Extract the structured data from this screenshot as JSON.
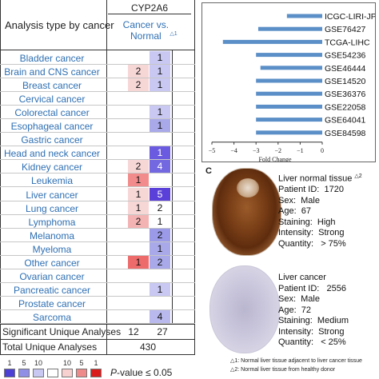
{
  "table": {
    "header_title": "Analysis type by cancer",
    "gene": "CYP2A6",
    "column_header": "Cancer vs. Normal",
    "column_header_mark": "△1",
    "rows": [
      {
        "label": "Bladder cancer",
        "up": "",
        "up_color": "",
        "down": "1",
        "down_color": "#c8c8f2"
      },
      {
        "label": "Brain and CNS cancer",
        "up": "2",
        "up_color": "#f7d6d6",
        "down": "1",
        "down_color": "#c8c8f2"
      },
      {
        "label": "Breast cancer",
        "up": "2",
        "up_color": "#f7d6d6",
        "down": "1",
        "down_color": "#c8c8f2"
      },
      {
        "label": "Cervical cancer",
        "up": "",
        "up_color": "",
        "down": "",
        "down_color": ""
      },
      {
        "label": "Colorectal cancer",
        "up": "",
        "up_color": "",
        "down": "1",
        "down_color": "#c8c8f2"
      },
      {
        "label": "Esophageal cancer",
        "up": "",
        "up_color": "",
        "down": "1",
        "down_color": "#a9a9ea"
      },
      {
        "label": "Gastric cancer",
        "up": "",
        "up_color": "",
        "down": "",
        "down_color": ""
      },
      {
        "label": "Head and neck cancer",
        "up": "",
        "up_color": "",
        "down": "1",
        "down_color": "#6b5be0"
      },
      {
        "label": "Kidney cancer",
        "up": "2",
        "up_color": "#f7d6d6",
        "down": "4",
        "down_color": "#7468e0"
      },
      {
        "label": "Leukemia",
        "up": "1",
        "up_color": "#f28c8c",
        "down": "",
        "down_color": ""
      },
      {
        "label": "Liver cancer",
        "up": "1",
        "up_color": "#f7d6d6",
        "down": "5",
        "down_color": "#5a3fd8"
      },
      {
        "label": "Lung cancer",
        "up": "1",
        "up_color": "#f7d6d6",
        "down": "2",
        "down_color": "#ffffff"
      },
      {
        "label": "Lymphoma",
        "up": "2",
        "up_color": "#f3b3b3",
        "down": "1",
        "down_color": "#ffffff"
      },
      {
        "label": "Melanoma",
        "up": "",
        "up_color": "",
        "down": "2",
        "down_color": "#9a9ae8"
      },
      {
        "label": "Myeloma",
        "up": "",
        "up_color": "",
        "down": "1",
        "down_color": "#a9a9ea"
      },
      {
        "label": "Other cancer",
        "up": "1",
        "up_color": "#ee6b6b",
        "down": "2",
        "down_color": "#a9a9ea"
      },
      {
        "label": "Ovarian cancer",
        "up": "",
        "up_color": "",
        "down": "",
        "down_color": ""
      },
      {
        "label": "Pancreatic cancer",
        "up": "",
        "up_color": "",
        "down": "1",
        "down_color": "#c8c8f2"
      },
      {
        "label": "Prostate cancer",
        "up": "",
        "up_color": "",
        "down": "",
        "down_color": ""
      },
      {
        "label": "Sarcoma",
        "up": "",
        "up_color": "",
        "down": "4",
        "down_color": "#b9b9ee"
      }
    ],
    "significant_label": "Significant Unique Analyses",
    "significant_up": "12",
    "significant_down": "27",
    "total_label": "Total Unique Analyses",
    "total_value": "430"
  },
  "legend": {
    "numbers": [
      "1",
      "5",
      "10",
      "",
      "10",
      "5",
      "1"
    ],
    "swatch_colors": [
      "#4b3fd6",
      "#8f8fe6",
      "#c8c8f2",
      "#ffffff",
      "#f7d0d0",
      "#ef8a8a",
      "#d91b1b"
    ],
    "p_label": "P",
    "p_suffix": "-value ≤ 0.05"
  },
  "chart_data": {
    "type": "bar",
    "orientation": "horizontal",
    "categories": [
      "ICGC-LIRI-JP",
      "GSE76427",
      "TCGA-LIHC",
      "GSE54236",
      "GSE46444",
      "GSE14520",
      "GSE36376",
      "GSE22058",
      "GSE64041",
      "GSE84598"
    ],
    "values": [
      -1.6,
      -2.9,
      -4.5,
      -3.0,
      -2.8,
      -3.0,
      -3.0,
      -3.0,
      -3.0,
      -3.0
    ],
    "bar_color": "#5b8fc7",
    "xlabel": "Fold Change",
    "xticks": [
      "−5",
      "−4",
      "−3",
      "−2",
      "−1",
      "0"
    ],
    "xlim": [
      -5,
      0
    ]
  },
  "panel_c": {
    "letter": "C",
    "normal_lines": [
      "Liver normal tissue ",
      "Patient ID:  1720",
      "Sex:  Male",
      "Age:  67",
      "Staining:  High",
      "Intensity:  Strong",
      "Quantity:   > 75%"
    ],
    "normal_mark": "△2",
    "cancer_lines": [
      "Liver cancer",
      "Patient ID:   2556",
      "Sex:  Male",
      "Age:  72",
      "Staining:  Medium",
      "Intensity:  Strong",
      "Quantity:   < 25%"
    ],
    "notes": [
      "△1: Normal liver tissue adjacent to liver cancer tissue",
      "△2: Normal liver tissue from healthy donor"
    ]
  }
}
